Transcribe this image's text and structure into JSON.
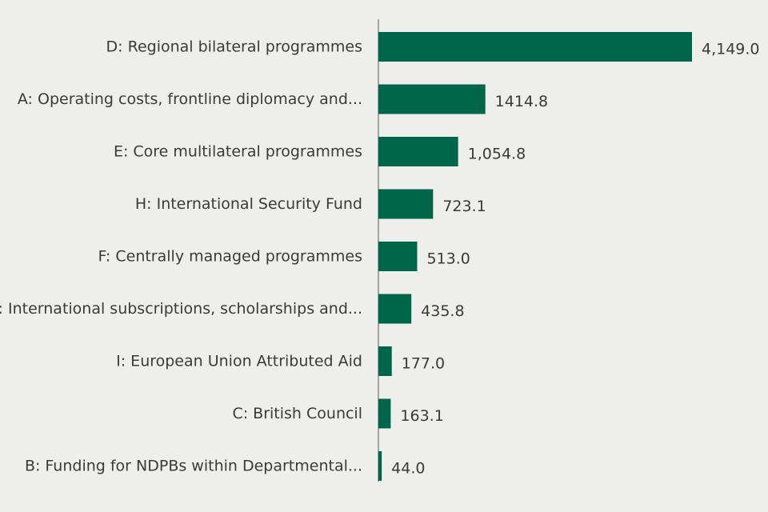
{
  "chart_data": {
    "type": "bar",
    "orientation": "horizontal",
    "title": "",
    "xlabel": "",
    "ylabel": "",
    "categories": [
      "D: Regional bilateral programmes",
      "A: Operating costs, frontline diplomacy and...",
      "E: Core multilateral programmes",
      "H: International Security Fund",
      "F: Centrally managed programmes",
      "G: International subscriptions, scholarships and...",
      "I: European Union Attributed Aid",
      "C: British Council",
      "B: Funding for NDPBs within Departmental..."
    ],
    "values": [
      4149.0,
      1414.8,
      1054.8,
      723.1,
      513.0,
      435.8,
      177.0,
      163.1,
      44.0
    ],
    "value_labels": [
      "4,149.0",
      "1414.8",
      "1,054.8",
      "723.1",
      "513.0",
      "435.8",
      "177.0",
      "163.1",
      "44.0"
    ],
    "xlim": [
      0,
      4149.0
    ],
    "grid": false,
    "legend": "none"
  },
  "colors": {
    "bar": "#00664a",
    "axis": "#555555",
    "text": "#3a3a3a",
    "background": "#eeeeed"
  }
}
